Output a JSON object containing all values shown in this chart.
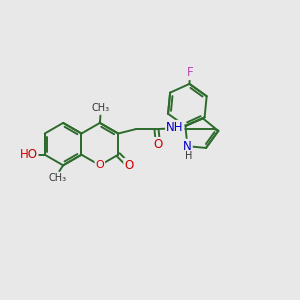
{
  "bg_color": "#e8e8e8",
  "bond_color": "#2d6b2d",
  "bond_width": 1.4,
  "atom_colors": {
    "O": "#cc0000",
    "N": "#0000cc",
    "F": "#bb44bb",
    "C": "#000000"
  },
  "font_size": 8.5,
  "fig_size": [
    3.0,
    3.0
  ],
  "dpi": 100,
  "xlim": [
    0,
    10
  ],
  "ylim": [
    0,
    10
  ]
}
